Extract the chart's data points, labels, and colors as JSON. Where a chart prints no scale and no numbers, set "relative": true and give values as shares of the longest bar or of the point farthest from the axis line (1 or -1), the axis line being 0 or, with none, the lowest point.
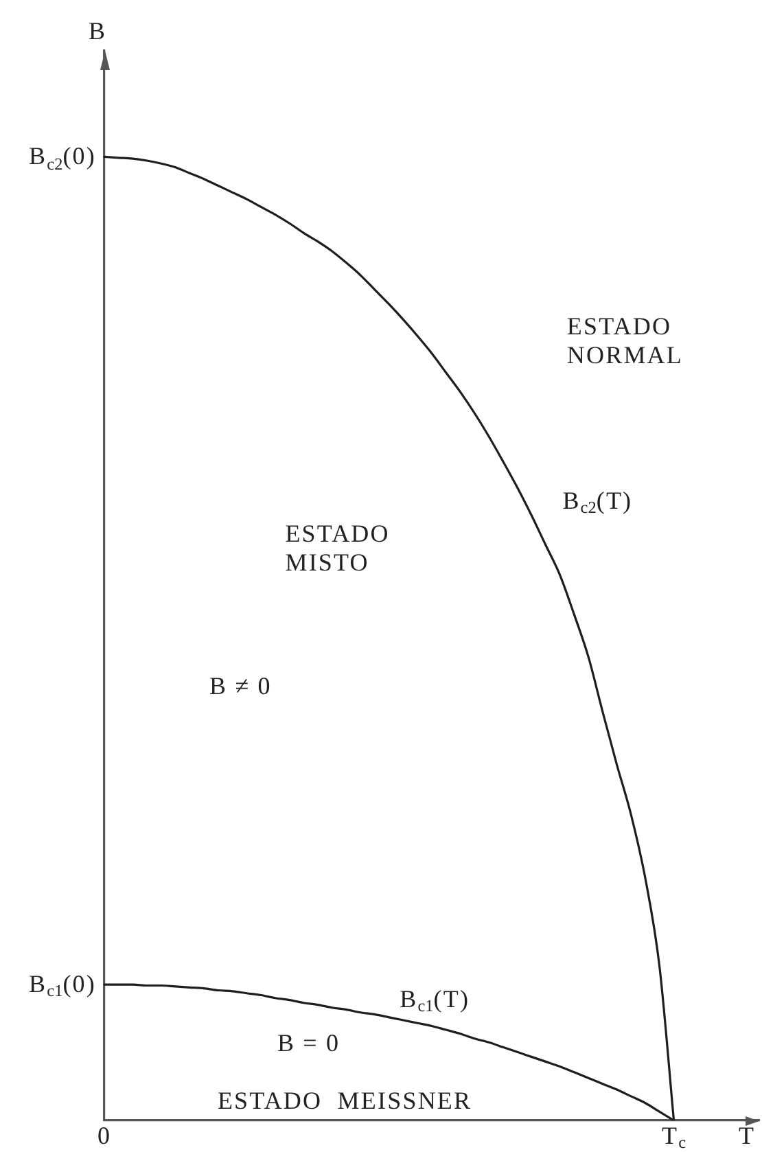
{
  "chart_data": {
    "type": "line",
    "relative": true,
    "xlabel": "T",
    "ylabel": "B",
    "categories": [
      "0",
      null,
      null,
      null,
      null,
      null,
      null,
      null,
      null,
      null,
      null,
      null,
      null,
      null,
      null,
      null,
      null,
      null,
      null,
      null,
      null,
      null,
      null,
      null,
      null,
      null,
      null,
      null,
      null,
      null,
      null,
      null,
      null,
      null,
      null,
      null,
      null,
      null,
      null,
      null,
      "T$_{c}$",
      null,
      null,
      null,
      null,
      null,
      null
    ],
    "series": [
      {
        "name": "B$_{c2}$(T)",
        "color": "#1e1e1e",
        "values": [
          1,
          0.999,
          0.998,
          0.996,
          0.993,
          0.989,
          0.983,
          0.977,
          0.97,
          0.963,
          0.956,
          0.948,
          0.94,
          0.931,
          0.921,
          0.912,
          0.902,
          0.89,
          0.877,
          0.862,
          0.847,
          0.831,
          0.814,
          0.796,
          0.776,
          0.756,
          0.734,
          0.71,
          0.684,
          0.657,
          0.628,
          0.597,
          0.566,
          0.525,
          0.481,
          0.424,
          0.369,
          0.317,
          0.251,
          0.159,
          0,
          null,
          null,
          null,
          null,
          null,
          null
        ]
      },
      {
        "name": "B$_{c1}$(T)",
        "color": "#1e1e1e",
        "values": [
          0.141,
          0.141,
          0.141,
          0.14,
          0.14,
          0.139,
          0.138,
          0.137,
          0.135,
          0.134,
          0.132,
          0.13,
          0.127,
          0.125,
          0.122,
          0.12,
          0.117,
          0.115,
          0.112,
          0.11,
          0.107,
          0.104,
          0.101,
          0.098,
          0.094,
          0.09,
          0.085,
          0.081,
          0.076,
          0.071,
          0.066,
          0.061,
          0.056,
          0.05,
          0.044,
          0.038,
          0.032,
          0.025,
          0.018,
          0.009,
          0,
          null,
          null,
          null,
          null,
          null,
          null
        ]
      }
    ],
    "annotations": [
      {
        "text": "B$_{c2}$(0)",
        "x": "0",
        "y": 1
      },
      {
        "text": "B$_{c1}$(0)",
        "x": "0",
        "y": 0.141
      },
      "ESTADO\nNORMAL",
      "ESTADO\nMISTO",
      "B ≠ 0",
      "B = 0",
      "ESTADO  MEISSNER"
    ]
  }
}
